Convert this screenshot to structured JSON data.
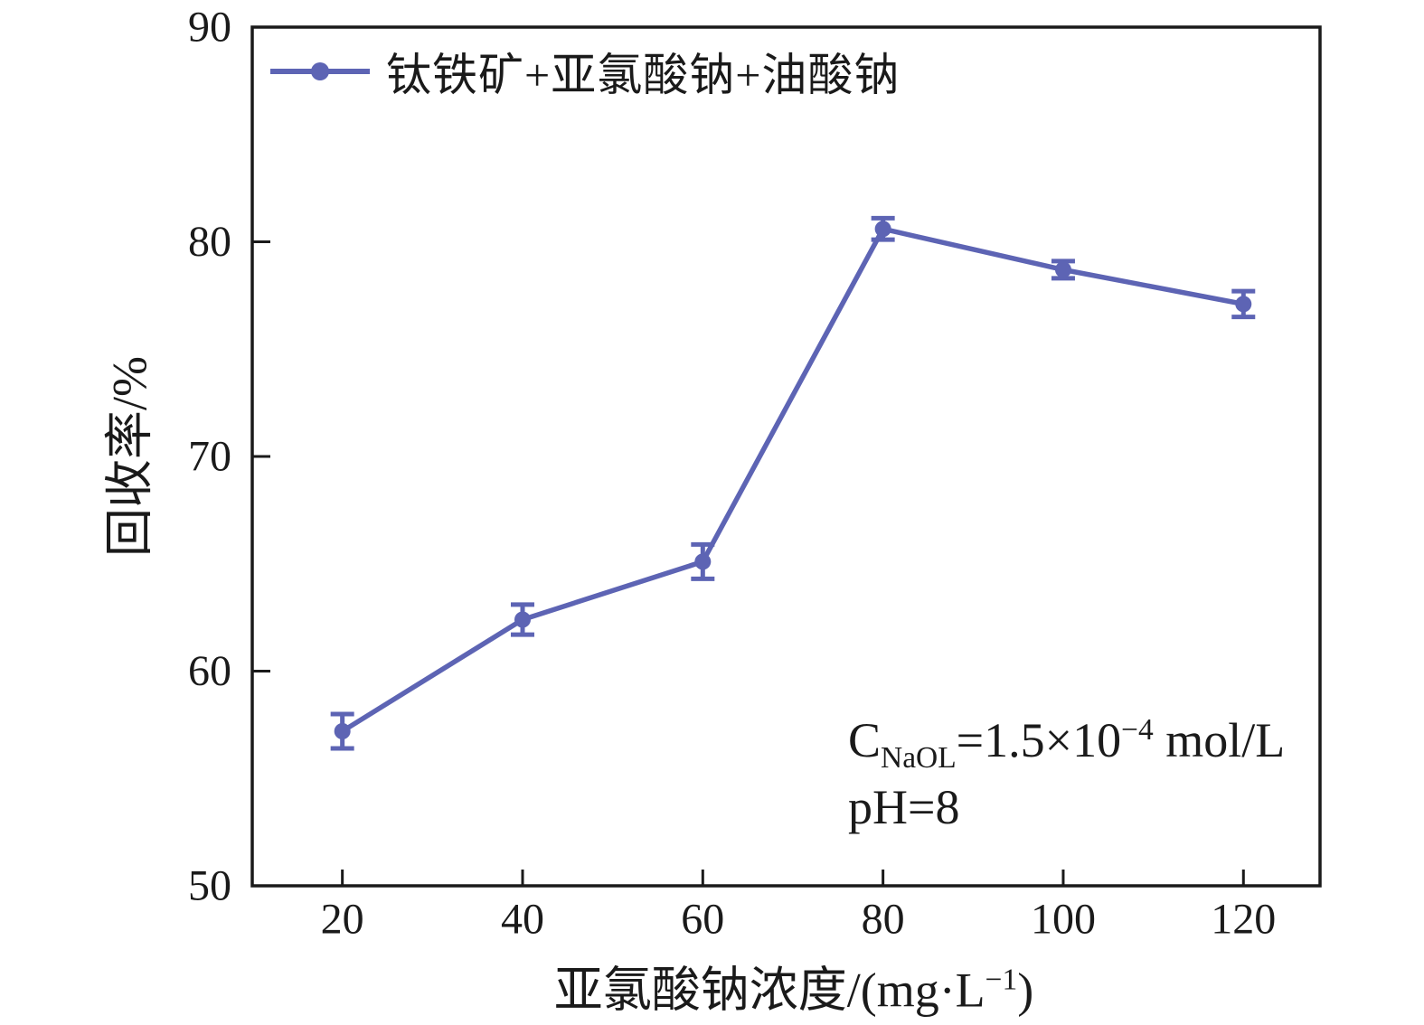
{
  "figure": {
    "legend": {
      "label": "钛铁矿+亚氯酸钠+油酸钠"
    },
    "y_axis": {
      "title": "回收率/%"
    },
    "x_axis": {
      "title_main": "亚氯酸钠浓度/(mg·L",
      "title_sup": "−1",
      "title_close": ")"
    },
    "annotation": {
      "line1_c": "C",
      "line1_sub": "NaOL",
      "line1_mid": "=1.5×10",
      "line1_sup": "−4",
      "line1_end": " mol/L",
      "line2": "pH=8"
    }
  },
  "chart_data": {
    "type": "line",
    "title": "",
    "xlabel": "亚氯酸钠浓度/(mg·L⁻¹)",
    "ylabel": "回收率/%",
    "x": [
      20,
      40,
      60,
      80,
      100,
      120
    ],
    "series": [
      {
        "name": "钛铁矿+亚氯酸钠+油酸钠",
        "values": [
          57.2,
          62.4,
          65.1,
          80.6,
          78.7,
          77.1
        ],
        "yerr": [
          0.8,
          0.7,
          0.8,
          0.5,
          0.4,
          0.6
        ]
      }
    ],
    "x_ticks": [
      20,
      40,
      60,
      80,
      100,
      120
    ],
    "y_ticks": [
      50,
      60,
      70,
      80,
      90
    ],
    "xlim": [
      10,
      128.5
    ],
    "ylim": [
      50,
      90
    ],
    "grid": false,
    "legend_position": "top-left-inside",
    "line_color": "#5D64B4",
    "axis_color": "#1a1a1a",
    "annotations": [
      "C_NaOL=1.5×10⁻⁴ mol/L",
      "pH=8"
    ]
  }
}
